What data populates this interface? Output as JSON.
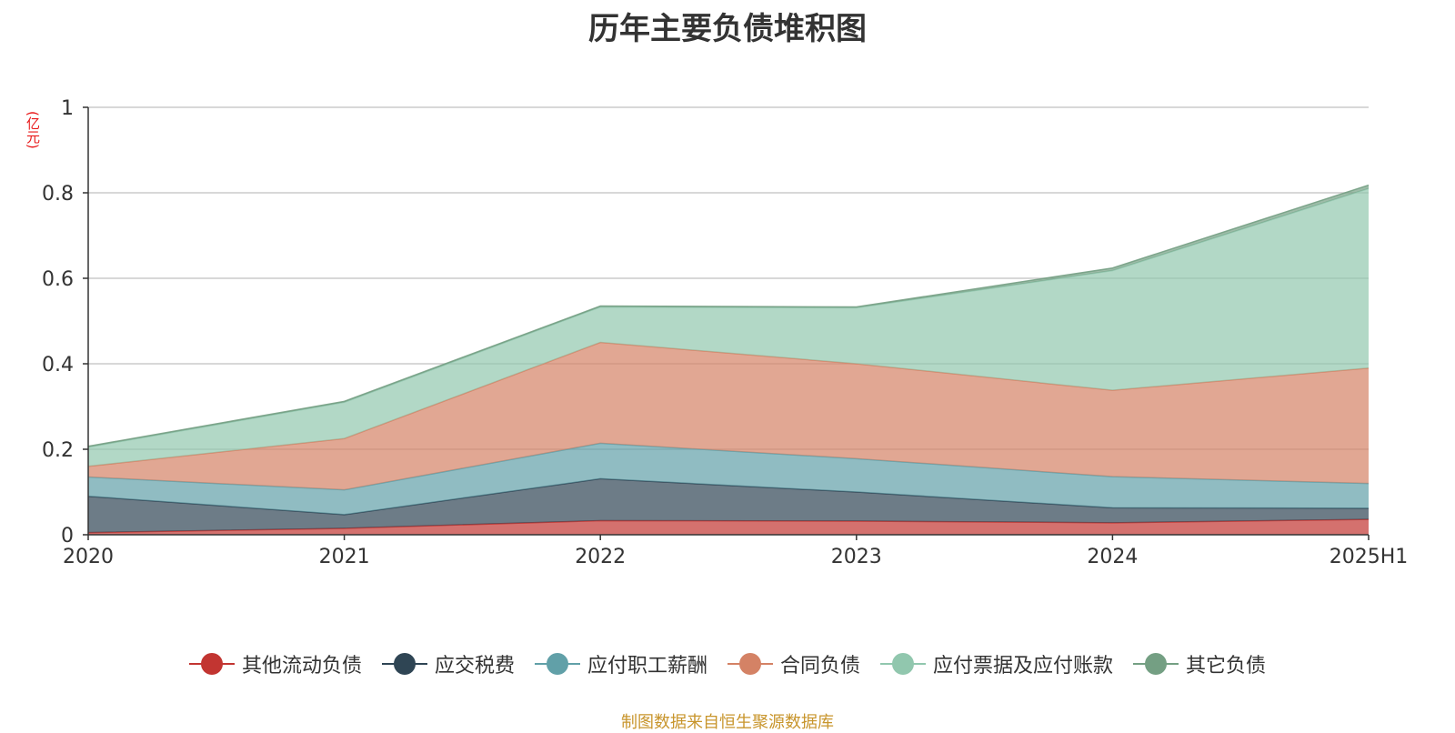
{
  "chart_data": {
    "type": "area",
    "stacked": true,
    "title": "历年主要负债堆积图",
    "unit_label": "(亿元)",
    "categories": [
      "2020",
      "2021",
      "2022",
      "2023",
      "2024",
      "2025H1"
    ],
    "y_ticks": [
      "0",
      "0.2",
      "0.4",
      "0.6",
      "0.8",
      "1"
    ],
    "ylim": [
      0,
      1
    ],
    "grid": true,
    "legend_position": "bottom",
    "series": [
      {
        "name": "其他流动负债",
        "color": "#c23531",
        "values": [
          0.005,
          0.015,
          0.033,
          0.032,
          0.028,
          0.036
        ]
      },
      {
        "name": "应交税费",
        "color": "#2f4554",
        "values": [
          0.085,
          0.032,
          0.098,
          0.068,
          0.035,
          0.026
        ]
      },
      {
        "name": "应付职工薪酬",
        "color": "#61a0a8",
        "values": [
          0.045,
          0.058,
          0.083,
          0.078,
          0.073,
          0.058
        ]
      },
      {
        "name": "合同负债",
        "color": "#d48265",
        "values": [
          0.025,
          0.12,
          0.236,
          0.222,
          0.202,
          0.27
        ]
      },
      {
        "name": "应付票据及应付账款",
        "color": "#91c7ae",
        "values": [
          0.045,
          0.085,
          0.083,
          0.131,
          0.28,
          0.42
        ]
      },
      {
        "name": "其它负债",
        "color": "#749f83",
        "values": [
          0.002,
          0.002,
          0.002,
          0.002,
          0.006,
          0.008
        ]
      }
    ]
  },
  "source_note": "制图数据来自恒生聚源数据库"
}
